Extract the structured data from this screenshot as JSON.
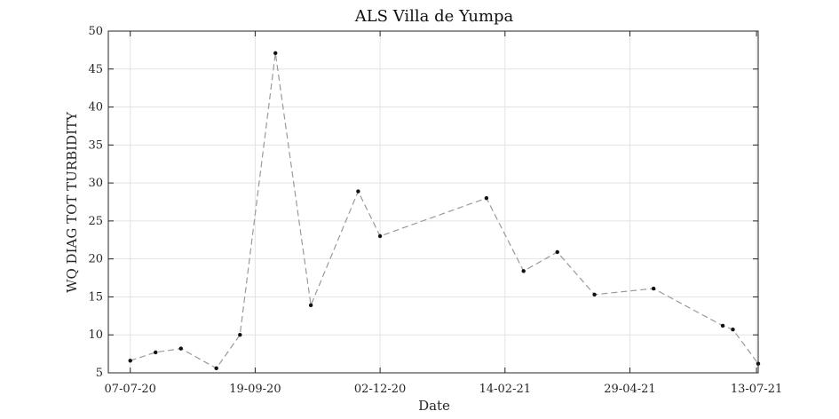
{
  "chart_data": {
    "type": "line",
    "title": "ALS Villa de Yumpa",
    "xlabel": "Date",
    "ylabel": "WQ DIAG TOT TURBIDITY",
    "ylim": [
      5,
      50
    ],
    "yticks": [
      5,
      10,
      15,
      20,
      25,
      30,
      35,
      40,
      45,
      50
    ],
    "xlim": [
      "2020-06-24",
      "2021-07-14"
    ],
    "xticks": [
      {
        "date": "2020-07-07",
        "label": "07-07-20"
      },
      {
        "date": "2020-09-19",
        "label": "19-09-20"
      },
      {
        "date": "2020-12-02",
        "label": "02-12-20"
      },
      {
        "date": "2021-02-14",
        "label": "14-02-21"
      },
      {
        "date": "2021-04-29",
        "label": "29-04-21"
      },
      {
        "date": "2021-07-13",
        "label": "13-07-21"
      }
    ],
    "grid": true,
    "series": [
      {
        "line_style": "dashed",
        "line_color": "#9a9a9a",
        "marker_color": "#111111",
        "points": [
          {
            "x": "2020-07-07",
            "y": 6.6
          },
          {
            "x": "2020-07-22",
            "y": 7.7
          },
          {
            "x": "2020-08-06",
            "y": 8.2
          },
          {
            "x": "2020-08-27",
            "y": 5.6
          },
          {
            "x": "2020-09-10",
            "y": 10.0
          },
          {
            "x": "2020-10-01",
            "y": 47.1
          },
          {
            "x": "2020-10-22",
            "y": 13.9
          },
          {
            "x": "2020-11-19",
            "y": 28.9
          },
          {
            "x": "2020-12-02",
            "y": 23.0
          },
          {
            "x": "2021-02-03",
            "y": 28.0
          },
          {
            "x": "2021-02-25",
            "y": 18.4
          },
          {
            "x": "2021-03-17",
            "y": 20.9
          },
          {
            "x": "2021-04-08",
            "y": 15.3
          },
          {
            "x": "2021-05-13",
            "y": 16.1
          },
          {
            "x": "2021-06-23",
            "y": 11.2
          },
          {
            "x": "2021-06-29",
            "y": 10.7
          },
          {
            "x": "2021-07-14",
            "y": 6.2
          }
        ]
      }
    ]
  }
}
